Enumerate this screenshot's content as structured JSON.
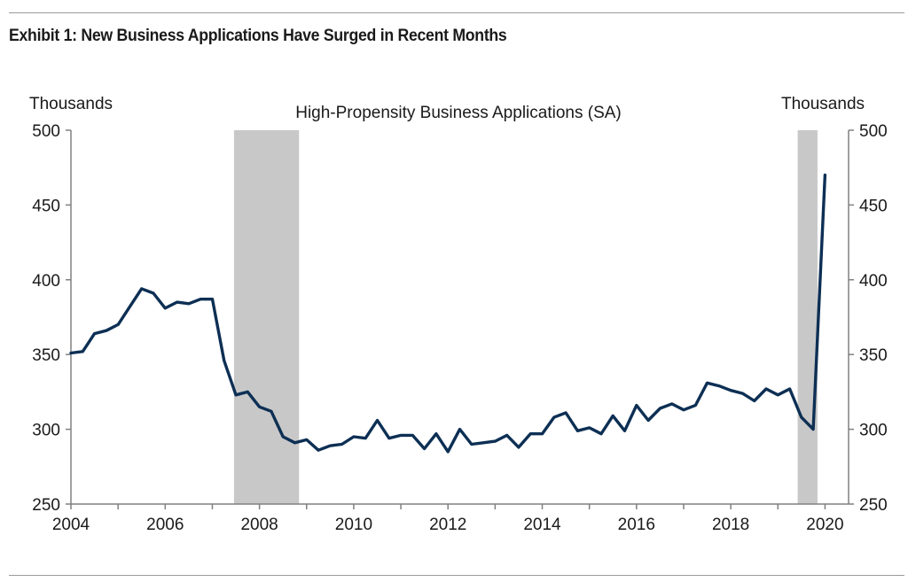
{
  "exhibit": {
    "title": "Exhibit 1: New Business Applications Have Surged in Recent Months"
  },
  "chart_data": {
    "type": "line",
    "title": "High-Propensity Business Applications (SA)",
    "ylabel_left": "Thousands",
    "ylabel_right": "Thousands",
    "xlim": [
      2004,
      2020.5
    ],
    "ylim": [
      250,
      500
    ],
    "yticks": [
      250,
      300,
      350,
      400,
      450,
      500
    ],
    "xticks": [
      2004,
      2006,
      2008,
      2010,
      2012,
      2014,
      2016,
      2018,
      2020
    ],
    "grid": false,
    "legend": "none",
    "line_color": "#0d2f54",
    "recession_color": "#c8c8c8",
    "recession_shading": [
      {
        "start": 2007.46,
        "end": 2008.84
      },
      {
        "start": 2019.42,
        "end": 2019.84
      }
    ],
    "series": [
      {
        "x": [
          2004.0,
          2004.25,
          2004.5,
          2004.75,
          2005.0,
          2005.25,
          2005.5,
          2005.75,
          2006.0,
          2006.25,
          2006.5,
          2006.75,
          2007.0,
          2007.25,
          2007.5,
          2007.75,
          2008.0,
          2008.25,
          2008.5,
          2008.75,
          2009.0,
          2009.25,
          2009.5,
          2009.75,
          2010.0,
          2010.25,
          2010.5,
          2010.75,
          2011.0,
          2011.25,
          2011.5,
          2011.75,
          2012.0,
          2012.25,
          2012.5,
          2012.75,
          2013.0,
          2013.25,
          2013.5,
          2013.75,
          2014.0,
          2014.25,
          2014.5,
          2014.75,
          2015.0,
          2015.25,
          2015.5,
          2015.75,
          2016.0,
          2016.25,
          2016.5,
          2016.75,
          2017.0,
          2017.25,
          2017.5,
          2017.75,
          2018.0,
          2018.25,
          2018.5,
          2018.75,
          2019.0,
          2019.25,
          2019.5,
          2019.75,
          2020.0
        ],
        "values": [
          351,
          352,
          364,
          366,
          370,
          382,
          394,
          391,
          381,
          385,
          384,
          387,
          387,
          346,
          323,
          325,
          315,
          312,
          295,
          291,
          293,
          286,
          289,
          290,
          295,
          294,
          306,
          294,
          296,
          296,
          287,
          297,
          285,
          300,
          290,
          291,
          292,
          296,
          288,
          297,
          297,
          308,
          311,
          299,
          301,
          297,
          309,
          299,
          316,
          306,
          314,
          317,
          313,
          316,
          331,
          329,
          326,
          324,
          319,
          327,
          323,
          327,
          308,
          300,
          470
        ]
      }
    ]
  }
}
